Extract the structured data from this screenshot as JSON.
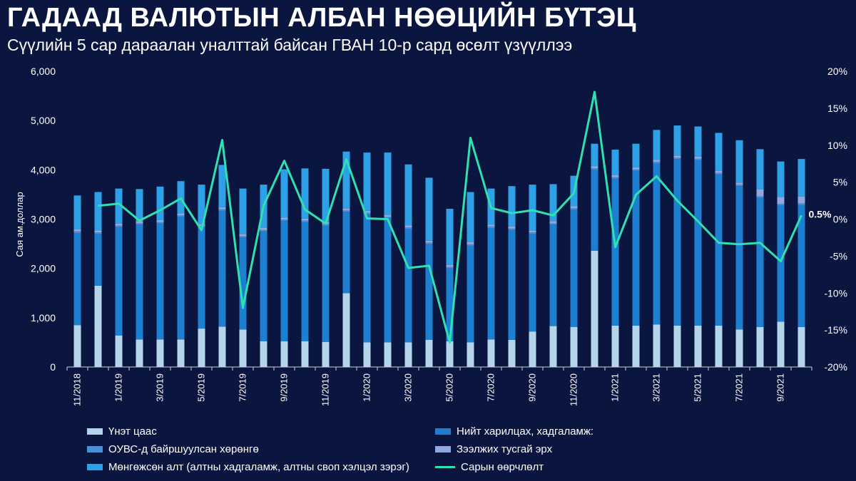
{
  "header": {
    "title": "ГАДААД ВАЛЮТЫН АЛБАН НӨӨЦИЙН БҮТЭЦ",
    "subtitle": "Сүүлийн 5 сар дараалан уналттай байсан ГВАН 10-р сард өсөлт үзүүллээ"
  },
  "chart_data": {
    "type": "bar",
    "stacked": true,
    "title": "ГАДААД ВАЛЮТЫН АЛБАН НӨӨЦИЙН БҮТЭЦ",
    "ylabel": "Сая ам.доллар",
    "ylim": [
      0,
      6000
    ],
    "y_ticks": [
      "0",
      "1,000",
      "2,000",
      "3,000",
      "4,000",
      "5,000",
      "6,000"
    ],
    "y2lim": [
      -20,
      20
    ],
    "y2_ticks": [
      "-20%",
      "-15%",
      "-10%",
      "-5%",
      "0%",
      "5%",
      "10%",
      "15%",
      "20%"
    ],
    "categories": [
      "11/2018",
      "12/2018",
      "1/2019",
      "2/2019",
      "3/2019",
      "4/2019",
      "5/2019",
      "6/2019",
      "7/2019",
      "8/2019",
      "9/2019",
      "10/2019",
      "11/2019",
      "12/2019",
      "1/2020",
      "2/2020",
      "3/2020",
      "4/2020",
      "5/2020",
      "6/2020",
      "7/2020",
      "8/2020",
      "9/2020",
      "10/2020",
      "11/2020",
      "12/2020",
      "1/2021",
      "2/2021",
      "3/2021",
      "4/2021",
      "5/2021",
      "6/2021",
      "7/2021",
      "8/2021",
      "9/2021",
      "10/2021"
    ],
    "x_tick_labels": [
      "11/2018",
      "",
      "1/2019",
      "",
      "3/2019",
      "",
      "5/2019",
      "",
      "7/2019",
      "",
      "9/2019",
      "",
      "11/2019",
      "",
      "1/2020",
      "",
      "3/2020",
      "",
      "5/2020",
      "",
      "7/2020",
      "",
      "9/2020",
      "",
      "11/2020",
      "",
      "1/2021",
      "",
      "3/2021",
      "",
      "5/2021",
      "",
      "7/2021",
      "",
      "9/2021",
      ""
    ],
    "series": [
      {
        "name": "Үнэт цаас",
        "color": "#b4d4ea",
        "values": [
          850,
          1650,
          640,
          560,
          560,
          560,
          780,
          820,
          760,
          520,
          520,
          520,
          510,
          1500,
          500,
          500,
          500,
          550,
          520,
          500,
          560,
          550,
          720,
          830,
          810,
          2360,
          840,
          840,
          860,
          840,
          840,
          840,
          760,
          810,
          920,
          810
        ]
      },
      {
        "name": "Нийт харилцах, хадгаламж:",
        "color": "#1c7fd0",
        "values": [
          1870,
          1050,
          2200,
          2330,
          2350,
          2490,
          2050,
          2350,
          1870,
          2230,
          2440,
          2420,
          2360,
          1650,
          2600,
          2520,
          2300,
          1940,
          1480,
          1960,
          2260,
          2230,
          1980,
          2060,
          2380,
          1640,
          2980,
          3140,
          3270,
          3380,
          3360,
          3070,
          2910,
          2620,
          2360,
          2480
        ]
      },
      {
        "name": "ОУВС-д байршуулсан хөрөнгө",
        "color": "#4a8fd6",
        "values": [
          30,
          30,
          30,
          30,
          30,
          30,
          30,
          30,
          30,
          30,
          30,
          30,
          30,
          30,
          30,
          30,
          30,
          30,
          30,
          30,
          30,
          30,
          30,
          30,
          30,
          30,
          30,
          30,
          30,
          30,
          30,
          30,
          30,
          30,
          30,
          30
        ]
      },
      {
        "name": "Зээлжих тусгай эрх",
        "color": "#8fa8e0",
        "values": [
          40,
          40,
          40,
          40,
          40,
          40,
          40,
          40,
          40,
          40,
          40,
          40,
          40,
          40,
          40,
          40,
          40,
          40,
          40,
          40,
          40,
          40,
          40,
          40,
          40,
          40,
          40,
          40,
          40,
          40,
          40,
          40,
          40,
          140,
          140,
          140
        ]
      },
      {
        "name": "Мөнгөжсөн алт (алтны хадгаламж, алтны своп хэлцэл зэрэг)",
        "color": "#2ea0e8",
        "values": [
          690,
          780,
          710,
          650,
          680,
          650,
          800,
          860,
          920,
          880,
          980,
          1020,
          1080,
          1150,
          1180,
          1260,
          1240,
          1280,
          1140,
          1020,
          730,
          820,
          930,
          750,
          620,
          460,
          520,
          480,
          610,
          610,
          610,
          770,
          860,
          820,
          720,
          760
        ]
      },
      {
        "name": "Сарын өөрчлөлт",
        "color": "#2fe0b0",
        "type": "line",
        "values": [
          null,
          1.8,
          2.1,
          -0.2,
          1.2,
          2.8,
          -1.5,
          10.7,
          -12,
          1.8,
          7.9,
          1.3,
          -0.6,
          8.1,
          0.1,
          0,
          -6.6,
          -6.3,
          -16.7,
          11,
          1.5,
          0.8,
          1.2,
          0.5,
          3.5,
          17.2,
          -3.8,
          3.3,
          5.8,
          2.5,
          -0.3,
          -3.2,
          -3.4,
          -3.2,
          -5.7,
          0.5
        ]
      }
    ],
    "annotation": "0.5%",
    "legend_position": "bottom"
  },
  "legend": {
    "items": [
      {
        "label": "Үнэт цаас",
        "color": "#b4d4ea",
        "kind": "bar"
      },
      {
        "label": "Нийт харилцах, хадгаламж:",
        "color": "#1c7fd0",
        "kind": "bar"
      },
      {
        "label": "ОУВС-д байршуулсан хөрөнгө",
        "color": "#4a8fd6",
        "kind": "bar"
      },
      {
        "label": "Зээлжих тусгай эрх",
        "color": "#8fa8e0",
        "kind": "bar"
      },
      {
        "label": "Мөнгөжсөн алт (алтны хадгаламж, алтны своп хэлцэл зэрэг)",
        "color": "#2ea0e8",
        "kind": "bar"
      },
      {
        "label": "Сарын өөрчлөлт",
        "color": "#2fe0b0",
        "kind": "line"
      }
    ]
  }
}
